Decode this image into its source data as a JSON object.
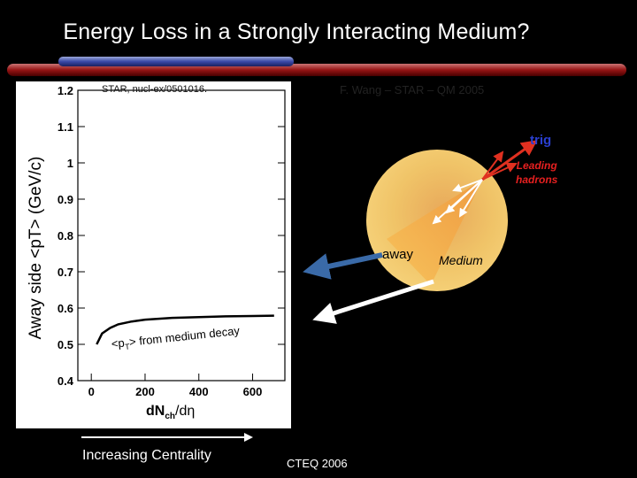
{
  "slide": {
    "title": "Energy Loss in a Strongly Interacting Medium?",
    "source_ref": "STAR, nucl-ex/0501016.",
    "credit": "F. Wang – STAR – QM 2005",
    "centrality_label": "Increasing Centrality",
    "footer": "CTEQ 2006"
  },
  "chart_data": {
    "type": "line",
    "title": "",
    "xlabel": {
      "main": "dN",
      "sub": "ch",
      "unit": "/dη"
    },
    "ylabel": "Away side <pT> (GeV/c)",
    "xlim": [
      -50,
      720
    ],
    "ylim": [
      0.4,
      1.2
    ],
    "x_ticks": [
      0,
      200,
      400,
      600
    ],
    "y_ticks": [
      0.4,
      0.5,
      0.6,
      0.7,
      0.8,
      0.9,
      1,
      1.1,
      1.2
    ],
    "y_tick_labels": [
      "0.4",
      "0.5",
      "0.6",
      "0.7",
      "0.8",
      "0.9",
      "1",
      "1.1",
      "1.2"
    ],
    "series": [
      {
        "name": "<pT> from medium decay",
        "label_main": "<p",
        "label_sub": "T",
        "label_rest": "> from medium decay",
        "x": [
          20,
          40,
          70,
          100,
          150,
          200,
          300,
          400,
          500,
          600,
          680
        ],
        "y": [
          0.5,
          0.53,
          0.545,
          0.555,
          0.563,
          0.568,
          0.573,
          0.575,
          0.577,
          0.578,
          0.579
        ]
      }
    ]
  },
  "diagram": {
    "trig_label": "trig",
    "leading_label_line1": "Leading",
    "leading_label_line2": "hadrons",
    "away_label": "away",
    "medium_label": "Medium"
  },
  "colors": {
    "background": "#000000",
    "panel": "#ffffff",
    "medium_sphere": "#f0c060",
    "cone": "#f5a030",
    "trig_arrow": "#e03020",
    "away_arrow_blue": "#3a6aa8",
    "away_arrow_white": "#ffffff"
  }
}
